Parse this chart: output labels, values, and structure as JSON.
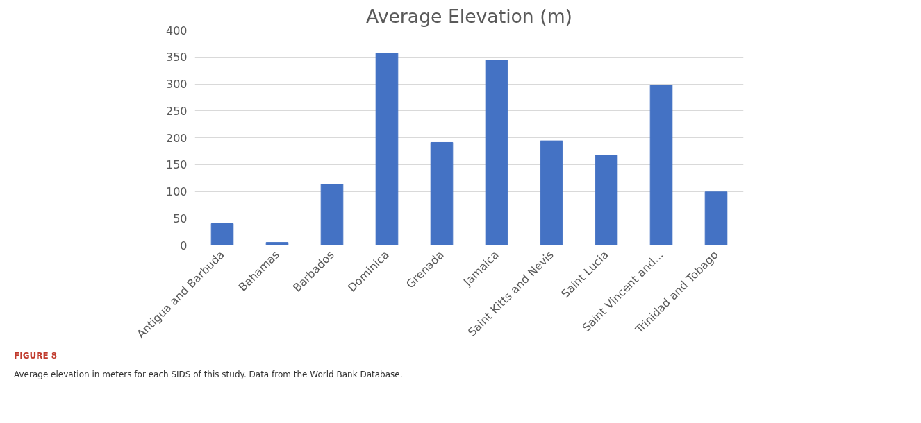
{
  "chart_data": {
    "type": "bar",
    "title": "Average Elevation (m)",
    "categories": [
      "Antigua and Barbuda",
      "Bahamas",
      "Barbados",
      "Dominica",
      "Grenada",
      "Jamaica",
      "Saint Kitts and Nevis",
      "Saint Lucia",
      "Saint Vincent and...",
      "Trinidad and Tobago"
    ],
    "values": [
      40,
      5,
      113,
      357,
      191,
      344,
      194,
      167,
      298,
      99
    ],
    "color": "#4472c4",
    "ylim": [
      0,
      400
    ],
    "yticks": [
      0,
      50,
      100,
      150,
      200,
      250,
      300,
      350,
      400
    ],
    "grid": "y",
    "annotations": [
      "FIGURE 8",
      "Average elevation in meters for each SIDS of this study. Data from the World Bank Database."
    ]
  }
}
